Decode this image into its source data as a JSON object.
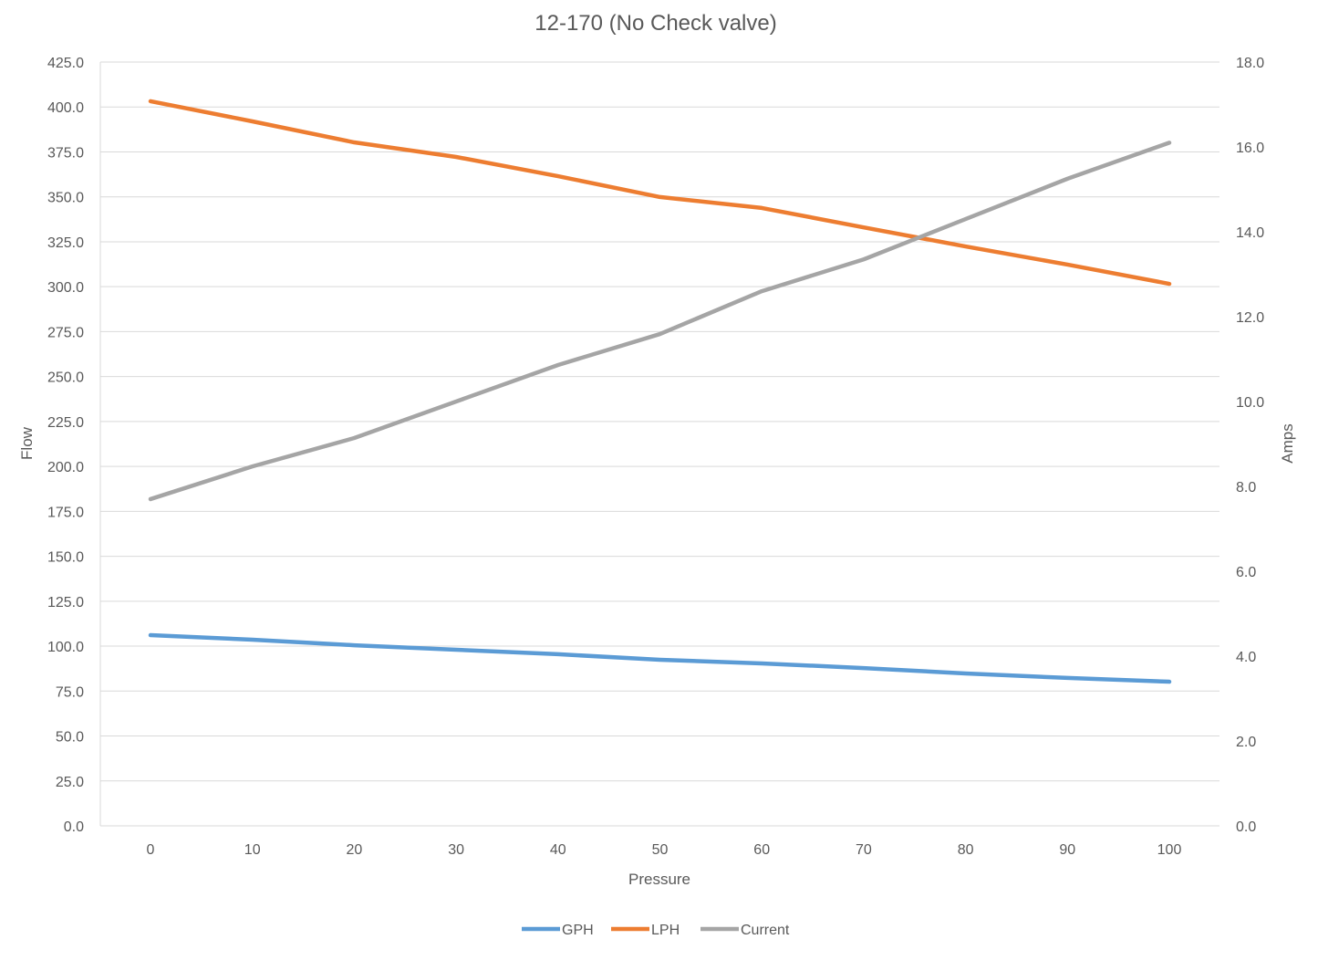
{
  "chart_data": {
    "type": "line",
    "title": "12-170 (No Check valve)",
    "xlabel": "Pressure",
    "ylabel": "Flow",
    "y2label": "Amps",
    "x": [
      0,
      10,
      20,
      30,
      40,
      50,
      60,
      70,
      80,
      90,
      100
    ],
    "ylim": [
      0,
      425
    ],
    "y2lim": [
      0,
      18
    ],
    "yticks": [
      "0.0",
      "25.0",
      "50.0",
      "75.0",
      "100.0",
      "125.0",
      "150.0",
      "175.0",
      "200.0",
      "225.0",
      "250.0",
      "275.0",
      "300.0",
      "325.0",
      "350.0",
      "375.0",
      "400.0",
      "425.0"
    ],
    "y2ticks": [
      "0.0",
      "2.0",
      "4.0",
      "6.0",
      "8.0",
      "10.0",
      "12.0",
      "14.0",
      "16.0",
      "18.0"
    ],
    "grid": true,
    "legend": "bottom",
    "series": [
      {
        "name": "GPH",
        "axis": "left",
        "color": "#5b9bd5",
        "values": [
          106.1,
          103.6,
          100.5,
          98.0,
          95.5,
          92.4,
          90.4,
          87.8,
          84.8,
          82.3,
          80.2
        ]
      },
      {
        "name": "LPH",
        "axis": "left",
        "color": "#ed7d31",
        "values": [
          403.2,
          392.0,
          380.3,
          372.2,
          361.5,
          349.9,
          343.8,
          333.0,
          322.4,
          312.3,
          301.6
        ]
      },
      {
        "name": "Current",
        "axis": "right",
        "color": "#a5a5a5",
        "values": [
          7.7,
          8.47,
          9.14,
          10.0,
          10.86,
          11.59,
          12.6,
          13.35,
          14.3,
          15.25,
          16.1
        ]
      }
    ]
  }
}
